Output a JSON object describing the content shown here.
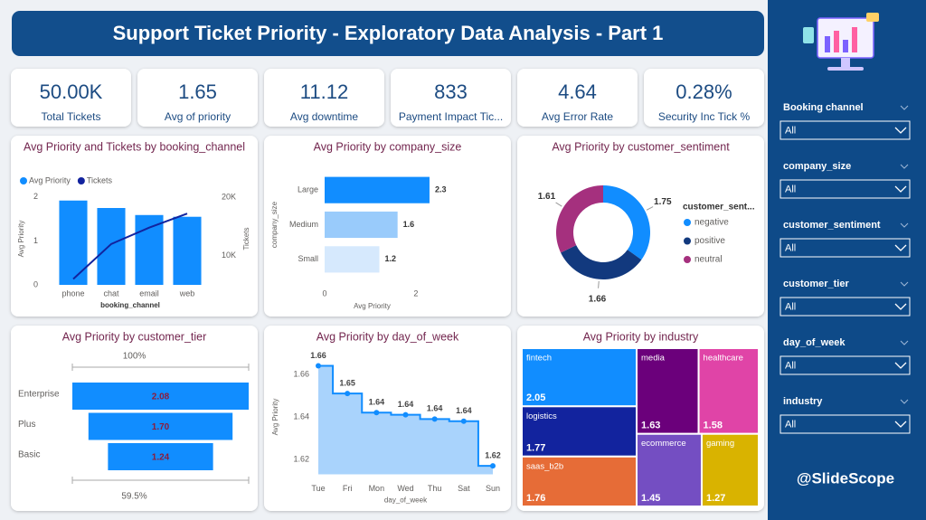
{
  "header": {
    "title": "Support Ticket Priority - Exploratory Data Analysis - Part 1"
  },
  "kpis": [
    {
      "value": "50.00K",
      "label": "Total Tickets"
    },
    {
      "value": "1.65",
      "label": "Avg of priority"
    },
    {
      "value": "11.12",
      "label": "Avg downtime"
    },
    {
      "value": "833",
      "label": "Payment Impact Tic..."
    },
    {
      "value": "4.64",
      "label": "Avg Error Rate"
    },
    {
      "value": "0.28%",
      "label": "Security Inc Tick %"
    }
  ],
  "filters": [
    {
      "label": "Booking channel",
      "value": "All"
    },
    {
      "label": "company_size",
      "value": "All"
    },
    {
      "label": "customer_sentiment",
      "value": "All"
    },
    {
      "label": "customer_tier",
      "value": "All"
    },
    {
      "label": "day_of_week",
      "value": "All"
    },
    {
      "label": "industry",
      "value": "All"
    }
  ],
  "brand": "@SlideScope",
  "chart_data": [
    {
      "type": "combo",
      "title": "Avg Priority and Tickets by booking_channel",
      "categories": [
        "phone",
        "chat",
        "email",
        "web"
      ],
      "series": [
        {
          "name": "Avg Priority",
          "color": "#118dff",
          "values": [
            1.92,
            1.75,
            1.59,
            1.55
          ]
        },
        {
          "name": "Tickets",
          "color": "#12239e",
          "axis": "y2",
          "values": [
            6000,
            12000,
            14800,
            17200
          ]
        }
      ],
      "ylim": [
        0,
        2.1
      ],
      "yticks": [
        0,
        1,
        2
      ],
      "y2lim": [
        5000,
        20800
      ],
      "y2ticks": [
        {
          "value": 10000,
          "label": "10K"
        },
        {
          "value": 20000,
          "label": "20K"
        }
      ],
      "xlabel": "booking_channel",
      "ylabel": "Avg Priority",
      "y2label": "Tickets",
      "legend": "top-left"
    },
    {
      "type": "bar",
      "orientation": "horizontal",
      "title": "Avg Priority by company_size",
      "categories": [
        "Large",
        "Medium",
        "Small"
      ],
      "values": [
        2.3,
        1.6,
        1.2
      ],
      "colors": [
        "#118dff",
        "#99cbfb",
        "#d6e9fd"
      ],
      "xlim": [
        0,
        2.4
      ],
      "xticks": [
        0,
        2
      ],
      "xlabel": "Avg Priority",
      "ylabel": "company_size"
    },
    {
      "type": "donut",
      "title": "Avg Priority by customer_sentiment",
      "categories": [
        "negative",
        "positive",
        "neutral"
      ],
      "values": [
        1.75,
        1.66,
        1.61
      ],
      "colors": [
        "#118dff",
        "#12397e",
        "#a5307e"
      ],
      "legend_title": "customer_sent..."
    },
    {
      "type": "funnel",
      "title": "Avg Priority by customer_tier",
      "categories": [
        "Enterprise",
        "Plus",
        "Basic"
      ],
      "values": [
        2.08,
        1.7,
        1.24
      ],
      "value_labels": [
        "2.08",
        "1.70",
        "1.24"
      ],
      "color": "#118dff",
      "top_label": "100%",
      "bottom_label": "59.5%"
    },
    {
      "type": "line",
      "title": "Avg Priority by day_of_week",
      "step": true,
      "area": true,
      "categories": [
        "Tue",
        "Fri",
        "Mon",
        "Wed",
        "Thu",
        "Sat",
        "Sun"
      ],
      "values": [
        1.664,
        1.651,
        1.642,
        1.641,
        1.639,
        1.638,
        1.617
      ],
      "value_labels": [
        "1.66",
        "1.65",
        "1.64",
        "1.64",
        "1.64",
        "1.64",
        "1.62"
      ],
      "color": "#118dff",
      "area_color": "#a9d3fc",
      "ylim": [
        1.613,
        1.667
      ],
      "yticks": [
        1.62,
        1.64,
        1.66
      ],
      "xlabel": "day_of_week",
      "ylabel": "Avg Priority"
    },
    {
      "type": "treemap",
      "title": "Avg Priority by industry",
      "categories": [
        "fintech",
        "logistics",
        "saas_b2b",
        "media",
        "healthcare",
        "ecommerce",
        "gaming"
      ],
      "values": [
        2.05,
        1.77,
        1.76,
        1.63,
        1.58,
        1.45,
        1.27
      ],
      "colors": [
        "#118dff",
        "#12239e",
        "#e66c37",
        "#6b007b",
        "#e044a7",
        "#744ec2",
        "#d9b300"
      ]
    }
  ]
}
